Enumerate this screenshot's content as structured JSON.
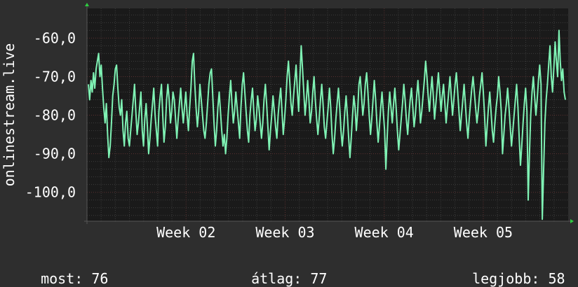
{
  "colors": {
    "background": "#2e2e2e",
    "plot_background": "#1a1a1a",
    "line": "#7ff2b4",
    "grid": "#4a4a4a",
    "text": "#ffffff",
    "axis_arrow": "#2ecc40"
  },
  "stats": {
    "current_label": "most:",
    "current_value": "76",
    "average_label": "átlag:",
    "average_value": "77",
    "best_label": "legjobb:",
    "best_value": "58"
  },
  "chart_data": {
    "type": "line",
    "ylabel": "onlinestream.live",
    "xlabel": "",
    "title": "",
    "ylim": [
      -107.5,
      -52.3
    ],
    "yticks": [
      -60,
      -70,
      -80,
      -90,
      -100
    ],
    "ytick_labels": [
      "-60,0",
      "-70,0",
      "-80,0",
      "-90,0",
      "-100,0"
    ],
    "xlim": [
      0,
      34
    ],
    "xticks": [
      7,
      14,
      21,
      28
    ],
    "xtick_labels": [
      "Week 02",
      "Week 03",
      "Week 04",
      "Week 05"
    ],
    "grid": true,
    "series": [
      {
        "values": [
          -72,
          -76,
          -71,
          -74,
          -69,
          -73,
          -68,
          -66,
          -64,
          -70,
          -67,
          -73,
          -78,
          -82,
          -77,
          -85,
          -91,
          -88,
          -82,
          -75,
          -72,
          -68,
          -67,
          -73,
          -78,
          -80,
          -76,
          -84,
          -88,
          -82,
          -79,
          -86,
          -88,
          -84,
          -80,
          -76,
          -72,
          -79,
          -85,
          -82,
          -78,
          -74,
          -84,
          -88,
          -81,
          -77,
          -83,
          -90,
          -86,
          -81,
          -77,
          -73,
          -80,
          -84,
          -88,
          -79,
          -75,
          -72,
          -80,
          -87,
          -83,
          -76,
          -72,
          -76,
          -82,
          -79,
          -74,
          -76,
          -81,
          -86,
          -81,
          -77,
          -73,
          -78,
          -82,
          -78,
          -74,
          -80,
          -84,
          -78,
          -73,
          -66,
          -64,
          -72,
          -78,
          -83,
          -79,
          -72,
          -76,
          -80,
          -84,
          -86,
          -82,
          -77,
          -72,
          -69,
          -68,
          -75,
          -82,
          -88,
          -84,
          -78,
          -74,
          -79,
          -84,
          -88,
          -85,
          -90,
          -86,
          -80,
          -75,
          -71,
          -77,
          -82,
          -79,
          -74,
          -78,
          -82,
          -86,
          -78,
          -72,
          -69,
          -74,
          -79,
          -84,
          -87,
          -80,
          -76,
          -73,
          -79,
          -84,
          -81,
          -75,
          -78,
          -82,
          -86,
          -82,
          -76,
          -72,
          -77,
          -83,
          -89,
          -84,
          -80,
          -75,
          -79,
          -83,
          -86,
          -80,
          -76,
          -73,
          -79,
          -85,
          -81,
          -76,
          -70,
          -66,
          -71,
          -77,
          -80,
          -75,
          -71,
          -67,
          -74,
          -79,
          -70,
          -62,
          -68,
          -74,
          -80,
          -76,
          -71,
          -76,
          -82,
          -79,
          -74,
          -70,
          -76,
          -81,
          -85,
          -81,
          -76,
          -72,
          -77,
          -83,
          -86,
          -82,
          -78,
          -73,
          -78,
          -85,
          -90,
          -86,
          -81,
          -77,
          -73,
          -78,
          -84,
          -88,
          -84,
          -79,
          -75,
          -80,
          -86,
          -91,
          -86,
          -80,
          -75,
          -78,
          -84,
          -79,
          -72,
          -70,
          -75,
          -80,
          -77,
          -72,
          -69,
          -74,
          -80,
          -85,
          -81,
          -76,
          -71,
          -76,
          -82,
          -87,
          -83,
          -78,
          -74,
          -79,
          -84,
          -94,
          -86,
          -79,
          -74,
          -78,
          -82,
          -77,
          -73,
          -78,
          -84,
          -89,
          -85,
          -81,
          -77,
          -72,
          -76,
          -81,
          -85,
          -80,
          -76,
          -73,
          -78,
          -83,
          -80,
          -75,
          -71,
          -76,
          -82,
          -79,
          -75,
          -71,
          -66,
          -70,
          -75,
          -79,
          -74,
          -70,
          -75,
          -81,
          -77,
          -73,
          -69,
          -74,
          -79,
          -75,
          -72,
          -77,
          -82,
          -78,
          -74,
          -70,
          -75,
          -80,
          -76,
          -72,
          -69,
          -74,
          -79,
          -84,
          -80,
          -76,
          -72,
          -77,
          -82,
          -86,
          -81,
          -77,
          -73,
          -70,
          -74,
          -78,
          -82,
          -79,
          -75,
          -72,
          -69,
          -74,
          -80,
          -88,
          -83,
          -78,
          -74,
          -79,
          -84,
          -87,
          -82,
          -78,
          -75,
          -70,
          -74,
          -79,
          -90,
          -85,
          -80,
          -77,
          -73,
          -78,
          -83,
          -88,
          -84,
          -80,
          -76,
          -72,
          -78,
          -86,
          -93,
          -88,
          -82,
          -77,
          -73,
          -79,
          -102,
          -90,
          -80,
          -74,
          -70,
          -75,
          -80,
          -76,
          -71,
          -67,
          -72,
          -107,
          -95,
          -82,
          -76,
          -72,
          -67,
          -62,
          -70,
          -74,
          -68,
          -61,
          -66,
          -70,
          -58,
          -66,
          -71,
          -68,
          -74,
          -76
        ]
      }
    ]
  }
}
